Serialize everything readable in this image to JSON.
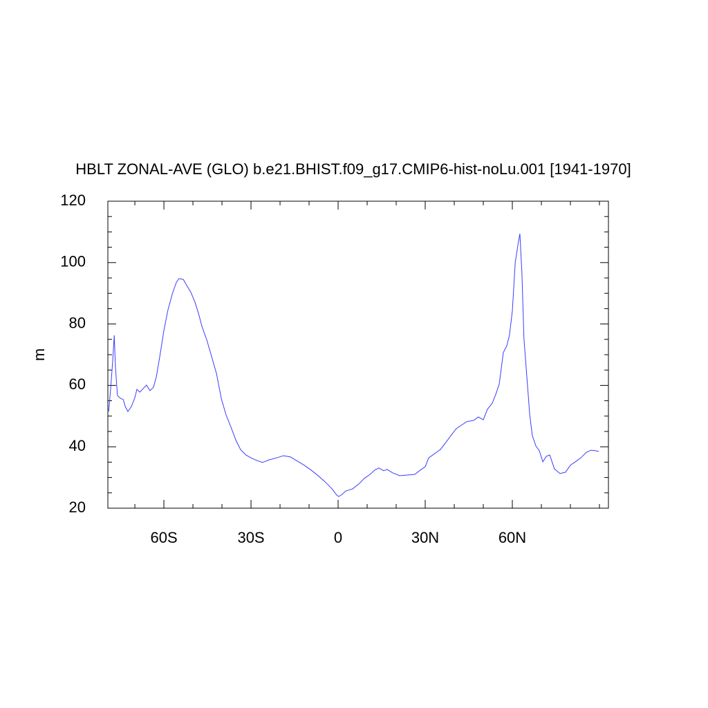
{
  "chart_data": {
    "type": "line",
    "title": "HBLT ZONAL-AVE (GLO) b.e21.BHIST.f09_g17.CMIP6-hist-noLu.001 [1941-1970]",
    "y_label": "m",
    "xlim": [
      -79.3,
      93.1
    ],
    "ylim": [
      20,
      120
    ],
    "xticks": [
      {
        "value": -60,
        "label": "60S"
      },
      {
        "value": -30,
        "label": "30S"
      },
      0,
      {
        "value": 30,
        "label": "30N"
      },
      {
        "value": 60,
        "label": "60N"
      }
    ],
    "yticks": [
      20,
      40,
      60,
      80,
      100,
      120
    ],
    "xminorticks": [
      -70,
      -50,
      -40,
      -20,
      -10,
      10,
      20,
      40,
      50,
      70,
      80,
      90
    ],
    "yminorticks": [
      25,
      30,
      35,
      45,
      50,
      55,
      65,
      70,
      75,
      85,
      90,
      95,
      105,
      110,
      115
    ],
    "series": [
      {
        "color": "#3a3aff",
        "x": [
          -79.0,
          -78.3,
          -77.6,
          -77.1,
          -76.7,
          -76.0,
          -75.0,
          -74.0,
          -73.3,
          -72.4,
          -71.2,
          -70.0,
          -69.3,
          -68.3,
          -67.4,
          -66.0,
          -64.8,
          -63.6,
          -62.6,
          -61.4,
          -60.0,
          -58.6,
          -57.1,
          -55.7,
          -54.8,
          -53.3,
          -52.1,
          -50.7,
          -49.3,
          -48.1,
          -46.9,
          -45.2,
          -43.6,
          -41.9,
          -40.2,
          -38.6,
          -36.9,
          -35.2,
          -33.6,
          -31.7,
          -30.0,
          -27.9,
          -26.0,
          -23.6,
          -21.2,
          -18.8,
          -16.4,
          -14.0,
          -11.7,
          -9.3,
          -6.9,
          -4.5,
          -2.1,
          -0.5,
          0.2,
          1.4,
          2.6,
          5.0,
          7.4,
          9.0,
          11.0,
          12.6,
          14.0,
          15.7,
          16.9,
          18.8,
          21.2,
          24.0,
          26.4,
          28.3,
          30.0,
          31.2,
          33.6,
          35.2,
          37.1,
          38.8,
          40.7,
          42.4,
          44.3,
          46.7,
          48.3,
          50.0,
          51.4,
          53.1,
          54.5,
          55.5,
          56.9,
          58.1,
          59.0,
          60.0,
          61.0,
          61.9,
          62.6,
          63.3,
          64.0,
          65.0,
          66.0,
          66.9,
          68.1,
          69.3,
          70.5,
          71.7,
          72.9,
          74.5,
          76.4,
          78.3,
          80.0,
          81.7,
          83.6,
          85.5,
          87.1,
          88.8,
          89.8
        ],
        "values": [
          51.5,
          59.4,
          68.4,
          76.3,
          66.2,
          56.7,
          55.8,
          55.4,
          53.1,
          51.5,
          53.1,
          56.0,
          58.7,
          57.8,
          58.7,
          60.1,
          58.3,
          59.4,
          62.8,
          69.5,
          77.9,
          84.6,
          89.8,
          93.6,
          94.8,
          94.5,
          92.5,
          90.3,
          87.1,
          83.5,
          79.2,
          74.7,
          69.5,
          63.9,
          55.6,
          50.4,
          46.4,
          42.1,
          39.1,
          37.3,
          36.4,
          35.5,
          34.9,
          35.8,
          36.4,
          37.1,
          36.7,
          35.3,
          34.0,
          32.4,
          30.6,
          28.6,
          26.3,
          24.3,
          23.8,
          24.5,
          25.6,
          26.3,
          28.1,
          29.7,
          31.0,
          32.4,
          33.1,
          32.2,
          32.6,
          31.5,
          30.6,
          30.8,
          31.0,
          32.4,
          33.5,
          36.4,
          38.0,
          39.1,
          41.4,
          43.6,
          45.9,
          47.0,
          48.2,
          48.6,
          49.7,
          48.8,
          52.2,
          54.2,
          57.6,
          60.5,
          70.7,
          72.9,
          76.3,
          84.2,
          100.0,
          105.6,
          109.4,
          96.6,
          75.2,
          62.8,
          50.4,
          43.6,
          40.3,
          38.7,
          35.1,
          36.9,
          37.3,
          32.8,
          31.3,
          31.7,
          34.0,
          35.1,
          36.4,
          38.2,
          38.9,
          38.7,
          38.5
        ]
      }
    ]
  }
}
